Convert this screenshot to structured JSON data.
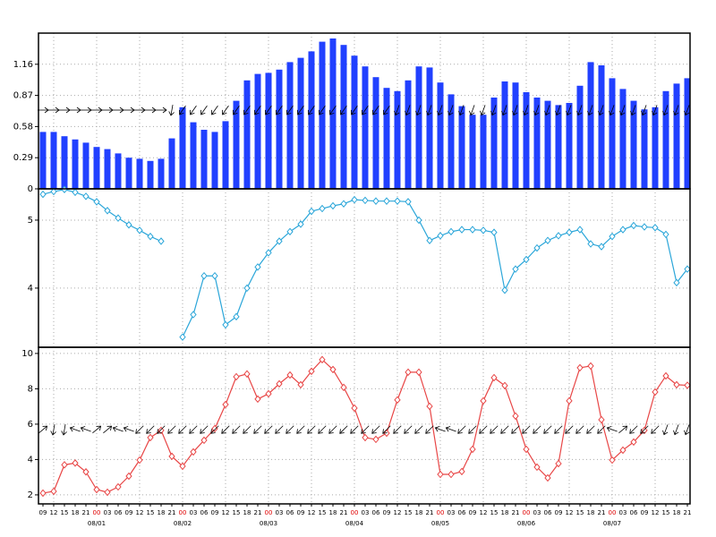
{
  "chart_data": [
    {
      "type": "bar",
      "color": "#2140ff",
      "ylim": [
        0,
        1.45
      ],
      "yticks": [
        0,
        0.29,
        0.58,
        0.87,
        1.16
      ],
      "values": [
        0.53,
        0.53,
        0.49,
        0.46,
        0.43,
        0.39,
        0.37,
        0.33,
        0.29,
        0.28,
        0.26,
        0.28,
        0.47,
        0.76,
        0.62,
        0.55,
        0.53,
        0.63,
        0.82,
        1.01,
        1.07,
        1.08,
        1.11,
        1.18,
        1.22,
        1.28,
        1.37,
        1.4,
        1.34,
        1.24,
        1.14,
        1.04,
        0.94,
        0.91,
        1.01,
        1.14,
        1.13,
        0.99,
        0.88,
        0.77,
        0.69,
        0.69,
        0.85,
        1.0,
        0.99,
        0.9,
        0.85,
        0.82,
        0.78,
        0.8,
        0.96,
        1.18,
        1.15,
        1.03,
        0.93,
        0.82,
        0.74,
        0.76,
        0.91,
        0.98,
        1.03
      ],
      "arrows": {
        "color": "#000000",
        "values": [
          0,
          0,
          0,
          0,
          0,
          0,
          0,
          0,
          0,
          0,
          0,
          0,
          100,
          125,
          125,
          125,
          125,
          125,
          125,
          125,
          125,
          125,
          125,
          125,
          125,
          125,
          125,
          125,
          125,
          125,
          125,
          125,
          125,
          110,
          110,
          110,
          110,
          110,
          110,
          110,
          110,
          110,
          110,
          110,
          110,
          110,
          110,
          110,
          110,
          110,
          110,
          110,
          110,
          110,
          110,
          110,
          110,
          110,
          110,
          110,
          110
        ]
      }
    },
    {
      "type": "line",
      "color": "#2ba6d9",
      "ylim": [
        3.13,
        5.46
      ],
      "yticks": [
        4,
        5
      ],
      "values": [
        5.38,
        5.42,
        5.45,
        5.41,
        5.35,
        5.27,
        5.14,
        5.03,
        4.93,
        4.85,
        4.76,
        4.69,
        null,
        3.28,
        3.61,
        4.18,
        4.18,
        3.46,
        3.58,
        4.0,
        4.31,
        4.52,
        4.69,
        4.83,
        4.94,
        5.13,
        5.17,
        5.21,
        5.24,
        5.3,
        5.29,
        5.28,
        5.28,
        5.28,
        5.27,
        5.0,
        4.7,
        4.77,
        4.83,
        4.86,
        4.86,
        4.85,
        4.82,
        3.97,
        4.28,
        4.42,
        4.59,
        4.7,
        4.77,
        4.82,
        4.86,
        4.65,
        4.61,
        4.76,
        4.86,
        4.92,
        4.9,
        4.89,
        4.79,
        4.08,
        4.28
      ]
    },
    {
      "type": "line",
      "color": "#e84646",
      "ylim": [
        1.49,
        10.35
      ],
      "yticks": [
        2,
        4,
        6,
        8,
        10
      ],
      "values": [
        2.1,
        2.2,
        3.7,
        3.8,
        3.3,
        2.3,
        2.15,
        2.45,
        3.06,
        3.97,
        5.24,
        5.65,
        4.18,
        3.62,
        4.43,
        5.09,
        5.75,
        7.11,
        8.68,
        8.84,
        7.42,
        7.72,
        8.28,
        8.78,
        8.23,
        8.99,
        9.65,
        9.09,
        8.08,
        6.91,
        5.24,
        5.14,
        5.49,
        7.37,
        8.94,
        8.94,
        7.01,
        3.16,
        3.16,
        3.32,
        4.58,
        7.32,
        8.63,
        8.18,
        6.46,
        4.58,
        3.57,
        2.96,
        3.77,
        7.32,
        9.19,
        9.29,
        6.25,
        3.97,
        4.53,
        4.99,
        5.65,
        7.82,
        8.73,
        8.23,
        8.2
      ],
      "arrows": {
        "color": "#000000",
        "values": [
          320,
          100,
          100,
          200,
          200,
          320,
          320,
          200,
          200,
          135,
          135,
          135,
          135,
          135,
          135,
          135,
          135,
          135,
          135,
          135,
          135,
          135,
          135,
          135,
          135,
          135,
          135,
          135,
          135,
          135,
          135,
          135,
          135,
          135,
          135,
          135,
          135,
          200,
          200,
          135,
          135,
          135,
          135,
          135,
          135,
          135,
          135,
          135,
          135,
          135,
          135,
          135,
          135,
          200,
          320,
          135,
          135,
          135,
          110,
          110,
          110
        ]
      },
      "categories": [
        "09",
        "12",
        "15",
        "18",
        "21",
        "00",
        "03",
        "06",
        "09",
        "12",
        "15",
        "18",
        "21",
        "00",
        "03",
        "06",
        "09",
        "12",
        "15",
        "18",
        "21",
        "00",
        "03",
        "06",
        "09",
        "12",
        "15",
        "18",
        "21",
        "00",
        "03",
        "06",
        "09",
        "12",
        "15",
        "18",
        "21",
        "00",
        "03",
        "06",
        "09",
        "12",
        "15",
        "18",
        "21",
        "00",
        "03",
        "06",
        "09",
        "12",
        "15",
        "18",
        "21",
        "00",
        "03",
        "06",
        "09",
        "12",
        "15",
        "18",
        "21"
      ],
      "highlight": {
        "color": "#e00000",
        "indices": [
          5,
          13,
          21,
          29,
          37,
          45,
          53
        ]
      },
      "date_labels": [
        "08/01",
        "08/02",
        "08/03",
        "08/04",
        "08/05",
        "08/06",
        "08/07"
      ]
    }
  ]
}
